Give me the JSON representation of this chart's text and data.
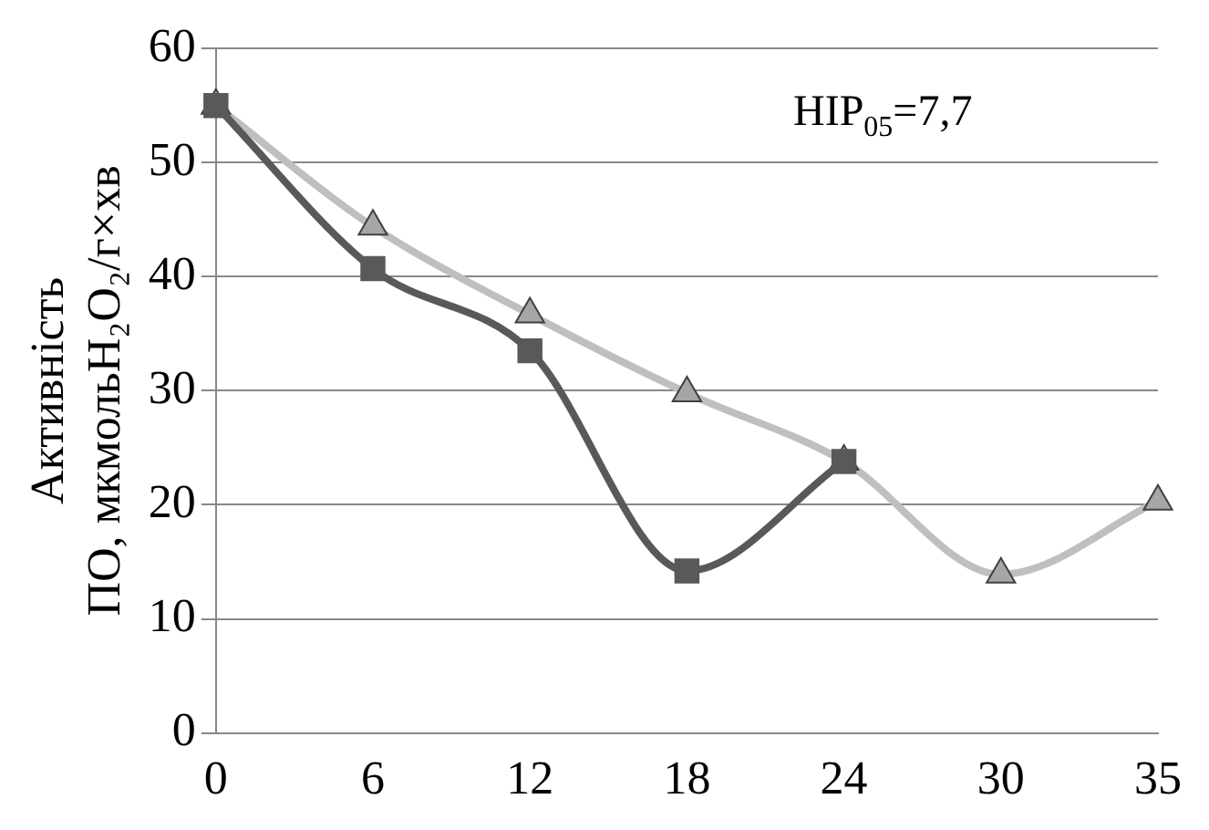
{
  "chart_data": {
    "type": "line",
    "ylabel": "Активність\nПО, мкмольH₂O₂/г×хв",
    "categories": [
      "0",
      "6",
      "12",
      "18",
      "24",
      "30",
      "35"
    ],
    "series": [
      {
        "color": "#595959",
        "marker": "square",
        "values": [
          55,
          40.7,
          33.5,
          14.2,
          23.8,
          null,
          null
        ]
      },
      {
        "color": "#bfbfbf",
        "marker": "triangle",
        "values": [
          55,
          44.4,
          36.7,
          29.8,
          23.8,
          13.9,
          20.3
        ]
      }
    ],
    "ylim": [
      0,
      60
    ],
    "yticks": [
      0,
      10,
      20,
      30,
      40,
      50,
      60
    ],
    "grid": "y",
    "legend": false,
    "annotations": [
      "НІР$_{05}$=7,7"
    ]
  }
}
